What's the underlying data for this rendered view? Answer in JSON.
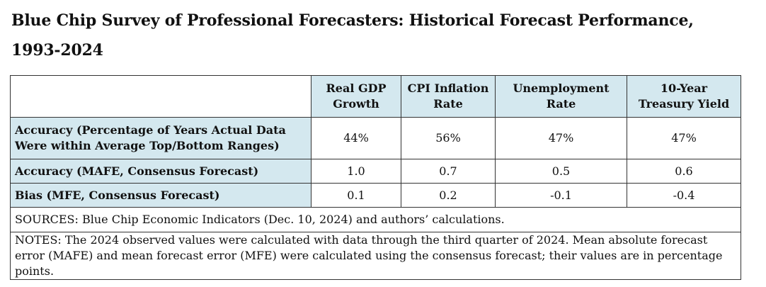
{
  "title": "Blue Chip Survey of Professional Forecasters: Historical Forecast Performance, 1993-2024",
  "table": {
    "columns": [
      "Real GDP Growth",
      "CPI Inflation Rate",
      "Unemployment Rate",
      "10-Year Treasury Yield"
    ],
    "rows": [
      {
        "label": "Accuracy (Percentage of Years Actual Data Were within Average Top/Bottom Ranges)",
        "values": [
          "44%",
          "56%",
          "47%",
          "47%"
        ]
      },
      {
        "label": "Accuracy (MAFE, Consensus Forecast)",
        "values": [
          "1.0",
          "0.7",
          "0.5",
          "0.6"
        ]
      },
      {
        "label": "Bias (MFE, Consensus Forecast)",
        "values": [
          "0.1",
          "0.2",
          "-0.1",
          "-0.4"
        ]
      }
    ],
    "sources": "SOURCES: Blue Chip Economic Indicators (Dec. 10, 2024) and authors’ calculations.",
    "notes": "NOTES: The 2024 observed values were calculated with data through the third quarter of 2024. Mean absolute forecast error (MAFE) and mean forecast error (MFE) were calculated using the consensus forecast; their values are in percentage points."
  },
  "colors": {
    "header_fill": "#d4e8ef",
    "border": "#333333"
  }
}
